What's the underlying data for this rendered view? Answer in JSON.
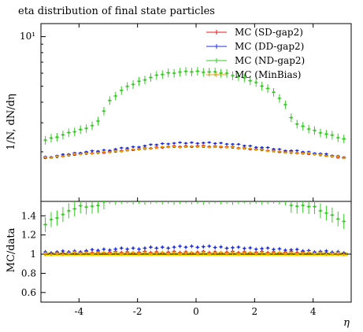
{
  "chart_data": {
    "type": "scatter",
    "title": "eta distribution of final state particles",
    "xlabel": "η",
    "ylabel": "1/N, dN/dη",
    "ratio_ylabel": "MC/data",
    "xlim": [
      -5.3,
      5.3
    ],
    "xticks": [
      "-4",
      "-2",
      "0",
      "2",
      "4"
    ],
    "xtick_values": [
      -4,
      -2,
      0,
      2,
      4
    ],
    "main_ylim": [
      1.0,
      12.0
    ],
    "main_yscale": "log",
    "main_ytick_label": "10¹",
    "main_ytick_value": 10,
    "ratio_ylim": [
      0.5,
      1.55
    ],
    "ratio_ticks": [
      "0.6",
      "0.8",
      "1",
      "1.2",
      "1.4"
    ],
    "ratio_tick_values": [
      0.6,
      0.8,
      1.0,
      1.2,
      1.4
    ],
    "legend_position": "top-right",
    "data_ref": {
      "x": [
        -5.0,
        -4.0,
        -3.0,
        -2.0,
        -1.0,
        0.0,
        1.0,
        2.0,
        3.0,
        4.0,
        5.0
      ],
      "y": [
        1.82,
        1.92,
        1.97,
        2.05,
        2.12,
        2.13,
        2.12,
        2.05,
        1.97,
        1.92,
        1.82
      ]
    },
    "series": [
      {
        "name": "MC (SD-gap2)",
        "color": "#e41a1c",
        "x": [
          -5.0,
          -4.0,
          -3.0,
          -2.0,
          -1.0,
          0.0,
          1.0,
          2.0,
          3.0,
          4.0,
          5.0
        ],
        "y": [
          1.85,
          1.95,
          2.0,
          2.08,
          2.15,
          2.17,
          2.15,
          2.08,
          2.0,
          1.95,
          1.85
        ],
        "ratio": [
          1.01,
          1.02,
          1.02,
          1.02,
          1.02,
          1.02,
          1.02,
          1.02,
          1.02,
          1.02,
          1.01
        ],
        "err": 0.015
      },
      {
        "name": "MC (DD-gap2)",
        "color": "#1f2fe0",
        "x": [
          -5.0,
          -4.0,
          -3.0,
          -2.0,
          -1.0,
          0.0,
          1.0,
          2.0,
          3.0,
          4.0,
          5.0
        ],
        "y": [
          1.86,
          1.98,
          2.05,
          2.15,
          2.25,
          2.27,
          2.25,
          2.15,
          2.05,
          1.98,
          1.86
        ],
        "ratio": [
          1.02,
          1.03,
          1.05,
          1.06,
          1.07,
          1.08,
          1.07,
          1.06,
          1.05,
          1.03,
          1.02
        ],
        "err": 0.015
      },
      {
        "name": "MC (ND-gap2)",
        "color": "#33cc22",
        "x": [
          -5.2,
          -5.0,
          -4.5,
          -4.0,
          -3.5,
          -3.3,
          -3.0,
          -2.5,
          -2.0,
          -1.5,
          -1.0,
          -0.5,
          0.0,
          0.5,
          1.0,
          1.5,
          2.0,
          2.5,
          3.0,
          3.3,
          3.5,
          4.0,
          4.5,
          5.0,
          5.2
        ],
        "y": [
          2.35,
          2.4,
          2.55,
          2.7,
          2.9,
          3.1,
          4.0,
          4.8,
          5.3,
          5.7,
          6.0,
          6.1,
          6.15,
          6.1,
          6.0,
          5.7,
          5.3,
          4.8,
          4.0,
          3.1,
          2.9,
          2.7,
          2.55,
          2.4,
          2.35
        ],
        "ratio": [
          1.3,
          1.35,
          1.42,
          1.5,
          1.5,
          1.5,
          1.6,
          1.6,
          1.6,
          1.6,
          1.6,
          1.6,
          1.6,
          1.6,
          1.6,
          1.6,
          1.6,
          1.6,
          1.6,
          1.5,
          1.5,
          1.5,
          1.42,
          1.35,
          1.3
        ],
        "err": 0.06
      },
      {
        "name": "MC (MinBias)",
        "color": "#e8a000",
        "x": [
          -5.0,
          -4.0,
          -3.0,
          -2.0,
          -1.0,
          0.0,
          1.0,
          2.0,
          3.0,
          4.0,
          5.0
        ],
        "y": [
          1.84,
          1.94,
          1.99,
          2.07,
          2.14,
          2.15,
          2.14,
          2.07,
          1.99,
          1.94,
          1.84
        ],
        "ratio": [
          1.0,
          1.01,
          1.01,
          1.01,
          1.01,
          1.01,
          1.01,
          1.01,
          1.01,
          1.01,
          1.0
        ],
        "err": 0.015
      }
    ]
  }
}
